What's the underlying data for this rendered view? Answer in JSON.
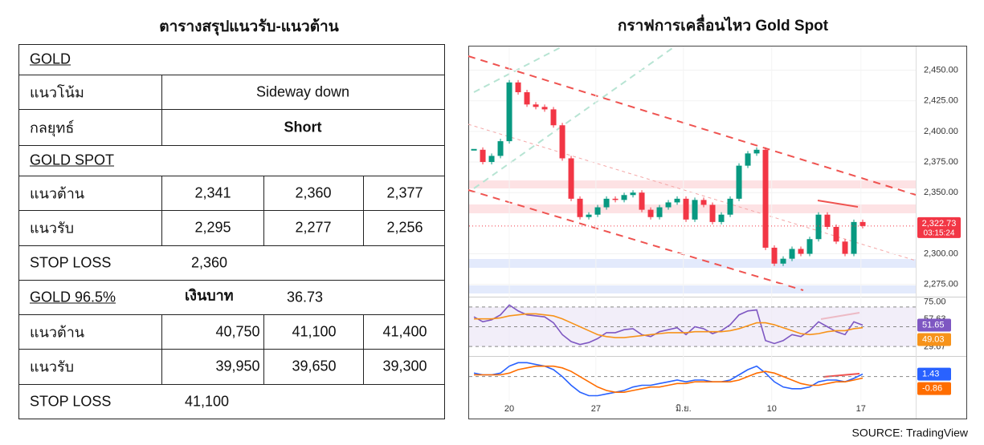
{
  "table": {
    "title": "ตารางสรุปแนวรับ-แนวต้าน",
    "gold": {
      "heading": "GOLD",
      "trend_label": "แนวโน้ม",
      "trend": "Sideway down",
      "strategy_label": "กลยุทธ์",
      "strategy": "Short"
    },
    "gold_spot": {
      "heading": "GOLD SPOT",
      "resistance_label": "แนวต้าน",
      "resistance": [
        "2,341",
        "2,360",
        "2,377"
      ],
      "support_label": "แนวรับ",
      "support": [
        "2,295",
        "2,277",
        "2,256"
      ],
      "stop_loss_label": "STOP LOSS",
      "stop_loss": "2,360"
    },
    "gold_965": {
      "heading": "GOLD 96.5%",
      "currency_label": "เงินบาท",
      "currency_value": "36.73",
      "resistance_label": "แนวต้าน",
      "resistance": [
        "40,750",
        "41,100",
        "41,400"
      ],
      "support_label": "แนวรับ",
      "support": [
        "39,950",
        "39,650",
        "39,300"
      ],
      "stop_loss_label": "STOP LOSS",
      "stop_loss": "41,100"
    }
  },
  "chart_data": {
    "type": "candlestick",
    "title": "กราฟการเคลื่อนไหว Gold Spot",
    "xlim": [
      -0.64,
      50
    ],
    "xticks": [
      {
        "value": 4,
        "label": "20"
      },
      {
        "value": 13.8,
        "label": "27"
      },
      {
        "value": 23.7,
        "label": "มิ.ย."
      },
      {
        "value": 33.7,
        "label": "10"
      },
      {
        "value": 43.8,
        "label": "17"
      }
    ],
    "price": {
      "up_color": "#089981",
      "down_color": "#f23645",
      "values": [
        2385,
        2375,
        2380,
        2392,
        2440,
        2432,
        2422,
        2420,
        2418,
        2405,
        2378,
        2345,
        2330,
        2332,
        2338,
        2345,
        2344,
        2348,
        2350,
        2336,
        2330,
        2338,
        2342,
        2345,
        2328,
        2344,
        2340,
        2326,
        2332,
        2345,
        2372,
        2382,
        2385,
        2305,
        2292,
        2296,
        2304,
        2300,
        2312,
        2332,
        2322,
        2310,
        2300,
        2326,
        2322.73
      ],
      "ylim": [
        2265,
        2470
      ],
      "yticks": [
        {
          "value": 2450,
          "label": "2,450.00"
        },
        {
          "value": 2425,
          "label": "2,425.00"
        },
        {
          "value": 2400,
          "label": "2,400.00"
        },
        {
          "value": 2375,
          "label": "2,375.00"
        },
        {
          "value": 2350,
          "label": "2,350.00"
        },
        {
          "value": 2300,
          "label": "2,300.00"
        },
        {
          "value": 2275,
          "label": "2,275.00"
        }
      ],
      "last_label": "2,322.73",
      "countdown": "03:15:24"
    },
    "rsi": {
      "ylim": [
        22,
        78
      ],
      "yticks": [
        {
          "value": 75,
          "label": "75.00"
        },
        {
          "value": 57.63,
          "label": "57.63"
        },
        {
          "value": 29.67,
          "label": "29.67"
        }
      ],
      "bands": [
        70,
        50,
        30
      ],
      "series": [
        {
          "color": "#7e57c2",
          "values": [
            60,
            55,
            57,
            62,
            72,
            66,
            62,
            61,
            60,
            54,
            42,
            35,
            32,
            34,
            38,
            44,
            44,
            47,
            48,
            42,
            40,
            45,
            47,
            49,
            42,
            50,
            48,
            43,
            46,
            52,
            62,
            66,
            67,
            36,
            33,
            36,
            42,
            40,
            46,
            55,
            50,
            45,
            42,
            55,
            51.65
          ]
        },
        {
          "color": "#f7931a",
          "values": [
            58,
            58,
            58,
            59,
            61,
            62,
            63,
            63,
            62,
            61,
            58,
            54,
            50,
            46,
            42,
            40,
            39,
            39,
            40,
            41,
            42,
            43,
            44,
            44,
            44,
            45,
            45,
            45,
            45,
            46,
            48,
            51,
            54,
            54,
            52,
            49,
            46,
            43,
            42,
            43,
            45,
            46,
            46,
            48,
            49.03
          ]
        }
      ]
    },
    "macd": {
      "ylim": [
        -14,
        10
      ],
      "levels": [
        0
      ],
      "series": [
        {
          "color": "#2962ff",
          "values": [
            2,
            1,
            1,
            2,
            6,
            8,
            8,
            7,
            6,
            4,
            0,
            -5,
            -9,
            -11,
            -11,
            -10,
            -9,
            -8,
            -6,
            -5,
            -5,
            -4,
            -3,
            -2,
            -3,
            -2,
            -2,
            -3,
            -3,
            -2,
            1,
            4,
            6,
            2,
            -3,
            -6,
            -7,
            -7,
            -6,
            -3,
            -2,
            -2,
            -3,
            -1,
            1.43
          ]
        },
        {
          "color": "#ff6d00",
          "values": [
            1,
            1,
            1,
            1,
            2,
            4,
            5,
            6,
            6,
            6,
            5,
            3,
            0,
            -3,
            -6,
            -8,
            -9,
            -9,
            -8,
            -7,
            -6,
            -6,
            -5,
            -4,
            -4,
            -3,
            -3,
            -3,
            -3,
            -3,
            -2,
            0,
            2,
            3,
            2,
            0,
            -2,
            -4,
            -5,
            -5,
            -4,
            -3,
            -3,
            -2,
            -0.86
          ]
        }
      ]
    }
  },
  "source": "SOURCE: TradingView"
}
